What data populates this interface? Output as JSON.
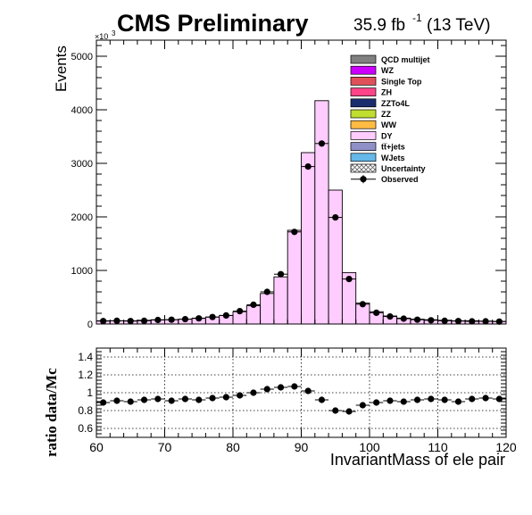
{
  "header": {
    "experiment": "CMS Preliminary",
    "lumi_value": "35.9 fb",
    "lumi_exp": "-1",
    "energy": "(13 TeV)"
  },
  "main_plot": {
    "ylabel": "Events",
    "y_multiplier": "×10",
    "y_multiplier_exp": "3",
    "ylim": [
      0,
      5300
    ],
    "yticks": [
      0,
      1000,
      2000,
      3000,
      4000,
      5000
    ],
    "ytick_labels": [
      "0",
      "1000",
      "2000",
      "3000",
      "4000",
      "5000"
    ]
  },
  "ratio_plot": {
    "ylabel": "ratio data/Mc",
    "ylim": [
      0.5,
      1.5
    ],
    "yticks": [
      0.6,
      0.8,
      1.0,
      1.2,
      1.4
    ],
    "ytick_labels": [
      "0.6",
      "0.8",
      "1",
      "1.2",
      "1.4"
    ],
    "xlabel": "InvariantMass of ele pair",
    "xlim": [
      60,
      120
    ],
    "xticks": [
      60,
      70,
      80,
      90,
      100,
      110,
      120
    ],
    "xtick_labels": [
      "60",
      "70",
      "80",
      "90",
      "100",
      "110",
      "120"
    ]
  },
  "legend": {
    "placement": "top-right",
    "entries": [
      {
        "label": "QCD multijet",
        "color": "#808080",
        "kind": "box"
      },
      {
        "label": "WZ",
        "color": "#cc00ff",
        "kind": "box"
      },
      {
        "label": "Single Top",
        "color": "#e0505a",
        "kind": "box"
      },
      {
        "label": "ZH",
        "color": "#ff4488",
        "kind": "box"
      },
      {
        "label": "ZZTo4L",
        "color": "#1a2e6e",
        "kind": "box"
      },
      {
        "label": "ZZ",
        "color": "#c0dd30",
        "kind": "box"
      },
      {
        "label": "WW",
        "color": "#ffbb44",
        "kind": "box"
      },
      {
        "label": "DY",
        "color": "#ffccff",
        "kind": "box"
      },
      {
        "label": "tt̅+jets",
        "color": "#9090c8",
        "kind": "box"
      },
      {
        "label": "WJets",
        "color": "#66b8e8",
        "kind": "box"
      },
      {
        "label": "Uncertainty",
        "color": "#888888",
        "kind": "hatch"
      },
      {
        "label": "Observed",
        "color": "#000000",
        "kind": "marker"
      }
    ]
  },
  "chart_data": [
    {
      "type": "bar",
      "x_bin_edges": [
        60,
        62,
        64,
        66,
        68,
        70,
        72,
        74,
        76,
        78,
        80,
        82,
        84,
        86,
        88,
        90,
        92,
        94,
        96,
        98,
        100,
        102,
        104,
        106,
        108,
        110,
        112,
        114,
        116,
        118,
        120
      ],
      "series": [
        {
          "name": "DY",
          "values": [
            60,
            60,
            60,
            70,
            80,
            80,
            90,
            110,
            130,
            160,
            230,
            340,
            570,
            880,
            1750,
            3200,
            4170,
            2500,
            960,
            390,
            230,
            150,
            110,
            90,
            80,
            70,
            60,
            60,
            55,
            50
          ]
        }
      ]
    },
    {
      "type": "scatter",
      "series": [
        {
          "name": "Observed",
          "x": [
            61,
            63,
            65,
            67,
            69,
            71,
            73,
            75,
            77,
            79,
            81,
            83,
            85,
            87,
            89,
            91,
            93,
            95,
            97,
            99,
            101,
            103,
            105,
            107,
            109,
            111,
            113,
            115,
            117,
            119
          ],
          "y": [
            55,
            60,
            55,
            60,
            75,
            80,
            90,
            105,
            130,
            160,
            240,
            360,
            600,
            930,
            1720,
            2940,
            3370,
            1990,
            840,
            370,
            210,
            140,
            100,
            80,
            70,
            60,
            55,
            50,
            50,
            45
          ]
        }
      ]
    },
    {
      "type": "scatter",
      "series": [
        {
          "name": "ratio",
          "x": [
            61,
            63,
            65,
            67,
            69,
            71,
            73,
            75,
            77,
            79,
            81,
            83,
            85,
            87,
            89,
            91,
            93,
            95,
            97,
            99,
            101,
            103,
            105,
            107,
            109,
            111,
            113,
            115,
            117,
            119
          ],
          "y": [
            0.89,
            0.91,
            0.9,
            0.92,
            0.93,
            0.91,
            0.93,
            0.92,
            0.94,
            0.95,
            0.97,
            1.0,
            1.04,
            1.06,
            1.07,
            1.02,
            0.92,
            0.8,
            0.79,
            0.86,
            0.89,
            0.91,
            0.9,
            0.92,
            0.93,
            0.92,
            0.9,
            0.93,
            0.94,
            0.93
          ]
        }
      ]
    }
  ]
}
